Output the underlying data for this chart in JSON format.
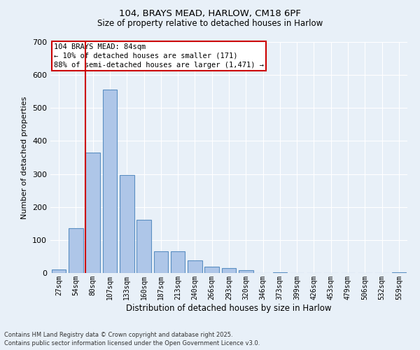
{
  "title_line1": "104, BRAYS MEAD, HARLOW, CM18 6PF",
  "title_line2": "Size of property relative to detached houses in Harlow",
  "xlabel": "Distribution of detached houses by size in Harlow",
  "ylabel": "Number of detached properties",
  "bar_labels": [
    "27sqm",
    "54sqm",
    "80sqm",
    "107sqm",
    "133sqm",
    "160sqm",
    "187sqm",
    "213sqm",
    "240sqm",
    "266sqm",
    "293sqm",
    "320sqm",
    "346sqm",
    "373sqm",
    "399sqm",
    "426sqm",
    "453sqm",
    "479sqm",
    "506sqm",
    "532sqm",
    "559sqm"
  ],
  "bar_values": [
    10,
    135,
    365,
    555,
    297,
    161,
    65,
    65,
    38,
    20,
    14,
    8,
    0,
    3,
    0,
    0,
    0,
    0,
    0,
    0,
    3
  ],
  "bar_color": "#aec6e8",
  "bar_edge_color": "#5a8fc2",
  "vline_index": 2,
  "vline_color": "#cc0000",
  "ylim": [
    0,
    700
  ],
  "yticks": [
    0,
    100,
    200,
    300,
    400,
    500,
    600,
    700
  ],
  "annotation_text": "104 BRAYS MEAD: 84sqm\n← 10% of detached houses are smaller (171)\n88% of semi-detached houses are larger (1,471) →",
  "annotation_box_color": "#cc0000",
  "background_color": "#e8f0f8",
  "grid_color": "#ffffff",
  "footer_line1": "Contains HM Land Registry data © Crown copyright and database right 2025.",
  "footer_line2": "Contains public sector information licensed under the Open Government Licence v3.0."
}
